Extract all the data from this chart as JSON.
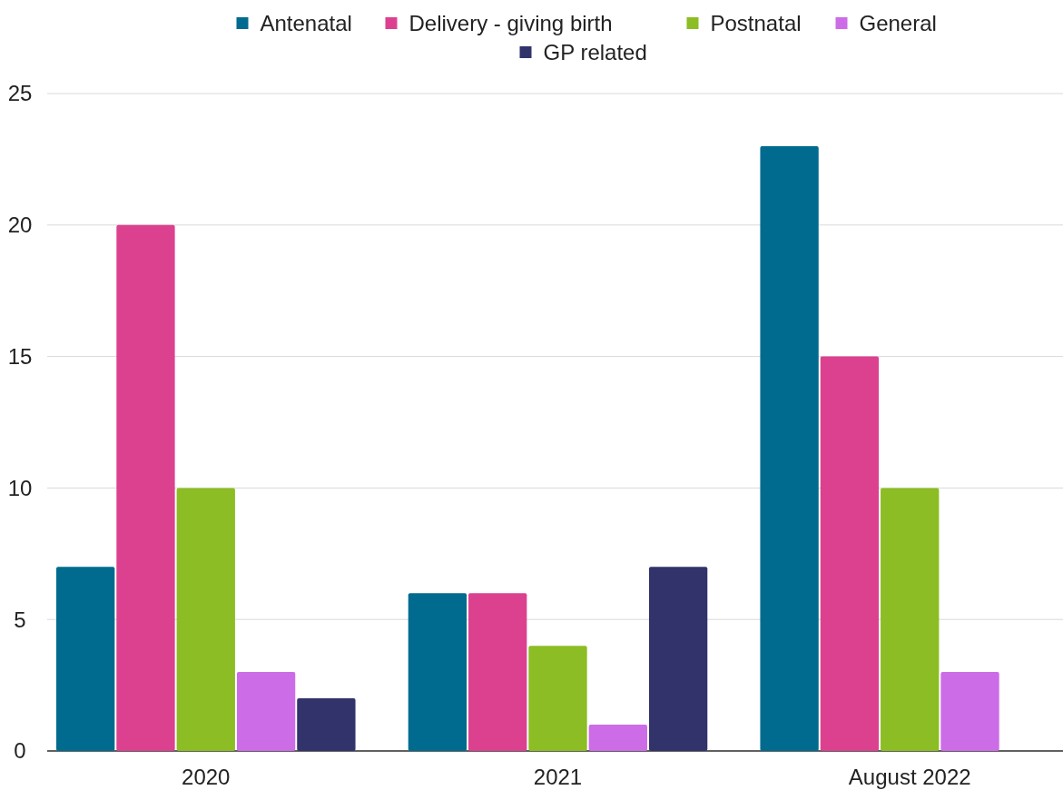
{
  "chart_data": {
    "type": "bar",
    "categories": [
      "2020",
      "2021",
      "August 2022"
    ],
    "series": [
      {
        "name": "Antenatal",
        "color": "#006b8f",
        "values": [
          7,
          6,
          23
        ]
      },
      {
        "name": "Delivery - giving birth",
        "color": "#dc4190",
        "values": [
          20,
          6,
          15
        ]
      },
      {
        "name": "Postnatal",
        "color": "#8cbd25",
        "values": [
          10,
          4,
          10
        ]
      },
      {
        "name": "General",
        "color": "#cc6ce6",
        "values": [
          3,
          1,
          3
        ]
      },
      {
        "name": "GP related",
        "color": "#31336a",
        "values": [
          2,
          7,
          null
        ]
      }
    ],
    "ylim": [
      0,
      25
    ],
    "yticks": [
      0,
      5,
      10,
      15,
      20,
      25
    ],
    "grid": "y",
    "legend": "top"
  }
}
